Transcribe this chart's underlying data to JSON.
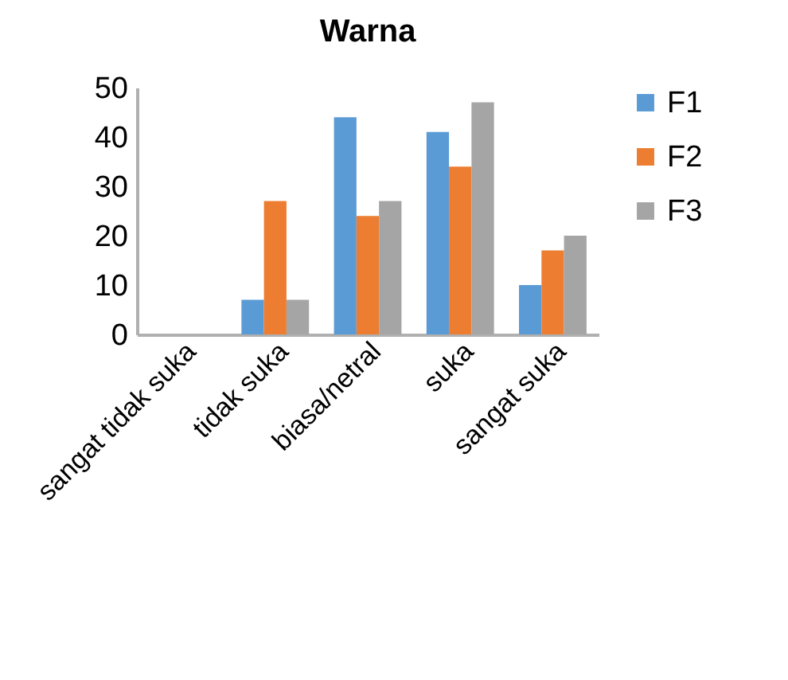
{
  "chart_data": {
    "type": "bar",
    "title": "Warna",
    "categories": [
      "sangat tidak suka",
      "tidak suka",
      "biasa/netral",
      "suka",
      "sangat suka"
    ],
    "series": [
      {
        "name": "F1",
        "color": "#5b9bd5",
        "values": [
          0,
          7,
          44,
          41,
          10
        ]
      },
      {
        "name": "F2",
        "color": "#ed7d31",
        "values": [
          0,
          27,
          24,
          34,
          17
        ]
      },
      {
        "name": "F3",
        "color": "#a5a5a5",
        "values": [
          0,
          7,
          27,
          47,
          20
        ]
      }
    ],
    "ylim": [
      0,
      50
    ],
    "yticks": [
      0,
      10,
      20,
      30,
      40,
      50
    ],
    "grid": false,
    "legend": "right"
  }
}
